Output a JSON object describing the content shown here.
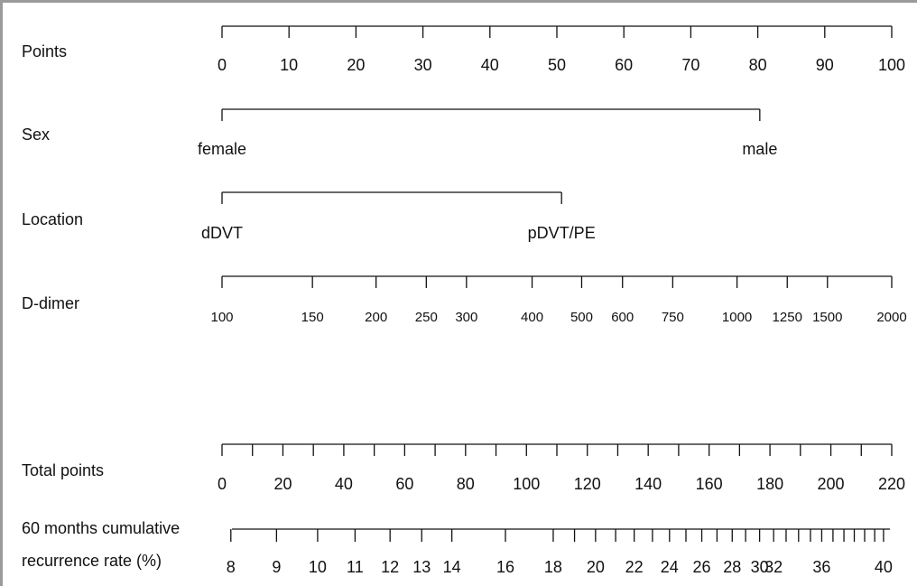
{
  "chart_data": {
    "type": "nomogram",
    "rows": [
      {
        "key": "points",
        "label": "Points",
        "ticks": [
          {
            "value": 0,
            "label": "0"
          },
          {
            "value": 10,
            "label": "10"
          },
          {
            "value": 20,
            "label": "20"
          },
          {
            "value": 30,
            "label": "30"
          },
          {
            "value": 40,
            "label": "40"
          },
          {
            "value": 50,
            "label": "50"
          },
          {
            "value": 60,
            "label": "60"
          },
          {
            "value": 70,
            "label": "70"
          },
          {
            "value": 80,
            "label": "80"
          },
          {
            "value": 90,
            "label": "90"
          },
          {
            "value": 100,
            "label": "100"
          }
        ]
      },
      {
        "key": "sex",
        "label": "Sex",
        "ticks": [
          {
            "points": 0,
            "label": "female"
          },
          {
            "points": 80.3,
            "label": "male"
          }
        ]
      },
      {
        "key": "location",
        "label": "Location",
        "ticks": [
          {
            "points": 0,
            "label": "dDVT"
          },
          {
            "points": 50.7,
            "label": "pDVT/PE"
          }
        ]
      },
      {
        "key": "ddimer",
        "label": "D-dimer",
        "ticks": [
          {
            "points": 0,
            "label": "100"
          },
          {
            "points": 13.5,
            "label": "150"
          },
          {
            "points": 23.0,
            "label": "200"
          },
          {
            "points": 30.5,
            "label": "250"
          },
          {
            "points": 36.5,
            "label": "300"
          },
          {
            "points": 46.3,
            "label": "400"
          },
          {
            "points": 53.7,
            "label": "500"
          },
          {
            "points": 59.8,
            "label": "600"
          },
          {
            "points": 67.3,
            "label": "750"
          },
          {
            "points": 76.9,
            "label": "1000"
          },
          {
            "points": 84.4,
            "label": "1250"
          },
          {
            "points": 90.4,
            "label": "1500"
          },
          {
            "points": 100,
            "label": "2000"
          }
        ]
      },
      {
        "key": "total",
        "label": "Total points",
        "ticks": [
          {
            "value": 0,
            "label": "0"
          },
          {
            "value": 10,
            "label": ""
          },
          {
            "value": 20,
            "label": "20"
          },
          {
            "value": 30,
            "label": ""
          },
          {
            "value": 40,
            "label": "40"
          },
          {
            "value": 50,
            "label": ""
          },
          {
            "value": 60,
            "label": "60"
          },
          {
            "value": 70,
            "label": ""
          },
          {
            "value": 80,
            "label": "80"
          },
          {
            "value": 90,
            "label": ""
          },
          {
            "value": 100,
            "label": "100"
          },
          {
            "value": 110,
            "label": ""
          },
          {
            "value": 120,
            "label": "120"
          },
          {
            "value": 130,
            "label": ""
          },
          {
            "value": 140,
            "label": "140"
          },
          {
            "value": 150,
            "label": ""
          },
          {
            "value": 160,
            "label": "160"
          },
          {
            "value": 170,
            "label": ""
          },
          {
            "value": 180,
            "label": "180"
          },
          {
            "value": 190,
            "label": ""
          },
          {
            "value": 200,
            "label": "200"
          },
          {
            "value": 210,
            "label": ""
          },
          {
            "value": 220,
            "label": "220"
          }
        ]
      },
      {
        "key": "recurrence",
        "label": [
          "60 months cumulative",
          "recurrence rate (%)"
        ],
        "ticks": [
          {
            "total": 2.9,
            "label": "8"
          },
          {
            "total": 17.9,
            "label": "9"
          },
          {
            "total": 31.4,
            "label": "10"
          },
          {
            "total": 43.7,
            "label": "11"
          },
          {
            "total": 55.2,
            "label": "12"
          },
          {
            "total": 65.6,
            "label": "13"
          },
          {
            "total": 75.5,
            "label": "14"
          },
          {
            "total": 93.1,
            "label": "16"
          },
          {
            "total": 108.8,
            "label": "18"
          },
          {
            "total": 115.8,
            "label": ""
          },
          {
            "total": 122.7,
            "label": "20"
          },
          {
            "total": 129.3,
            "label": ""
          },
          {
            "total": 135.4,
            "label": "22"
          },
          {
            "total": 141.4,
            "label": ""
          },
          {
            "total": 147.0,
            "label": "24"
          },
          {
            "total": 152.4,
            "label": ""
          },
          {
            "total": 157.6,
            "label": "26"
          },
          {
            "total": 162.6,
            "label": ""
          },
          {
            "total": 167.6,
            "label": "28"
          },
          {
            "total": 172.0,
            "label": ""
          },
          {
            "total": 176.6,
            "label": "30"
          },
          {
            "total": 181.2,
            "label": "32"
          },
          {
            "total": 185.3,
            "label": ""
          },
          {
            "total": 189.4,
            "label": ""
          },
          {
            "total": 193.3,
            "label": ""
          },
          {
            "total": 197.0,
            "label": "36"
          },
          {
            "total": 200.7,
            "label": ""
          },
          {
            "total": 204.3,
            "label": ""
          },
          {
            "total": 207.7,
            "label": ""
          },
          {
            "total": 211.1,
            "label": ""
          },
          {
            "total": 214.4,
            "label": ""
          },
          {
            "total": 217.3,
            "label": "40"
          }
        ]
      }
    ]
  }
}
